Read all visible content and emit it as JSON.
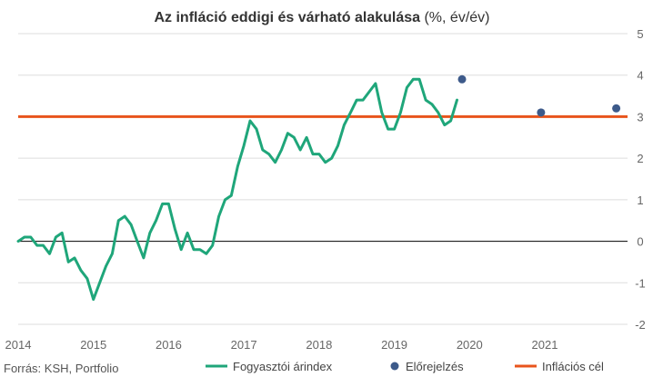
{
  "chart_data": {
    "type": "line",
    "title": "Az infláció eddigi és várható alakulása",
    "title_suffix": " (%, év/év)",
    "source": "Forrás: KSH, Portfolio",
    "x_ticks": [
      "2014",
      "2015",
      "2016",
      "2017",
      "2018",
      "2019",
      "2020",
      "2021"
    ],
    "xlim": [
      2014.0,
      2022.1
    ],
    "y_ticks": [
      "-2",
      "-1",
      "0",
      "1",
      "2",
      "3",
      "4",
      "5"
    ],
    "ylim": [
      -2,
      5
    ],
    "grid": true,
    "zero_line": true,
    "legend_position": "bottom",
    "colors": {
      "cpi": "#1fa67a",
      "forecast": "#3d5a8a",
      "target": "#e8541c",
      "grid": "#dddddd",
      "zero": "#000000"
    },
    "series": [
      {
        "name": "Fogyasztói árindex",
        "style": "line",
        "x": [
          2014.0,
          2014.083,
          2014.167,
          2014.25,
          2014.333,
          2014.417,
          2014.5,
          2014.583,
          2014.667,
          2014.75,
          2014.833,
          2014.917,
          2015.0,
          2015.083,
          2015.167,
          2015.25,
          2015.333,
          2015.417,
          2015.5,
          2015.583,
          2015.667,
          2015.75,
          2015.833,
          2015.917,
          2016.0,
          2016.083,
          2016.167,
          2016.25,
          2016.333,
          2016.417,
          2016.5,
          2016.583,
          2016.667,
          2016.75,
          2016.833,
          2016.917,
          2017.0,
          2017.083,
          2017.167,
          2017.25,
          2017.333,
          2017.417,
          2017.5,
          2017.583,
          2017.667,
          2017.75,
          2017.833,
          2017.917,
          2018.0,
          2018.083,
          2018.167,
          2018.25,
          2018.333,
          2018.417,
          2018.5,
          2018.583,
          2018.667,
          2018.75,
          2018.833,
          2018.917,
          2019.0,
          2019.083,
          2019.167,
          2019.25,
          2019.333,
          2019.417,
          2019.5,
          2019.583,
          2019.667,
          2019.75,
          2019.833
        ],
        "y": [
          0.0,
          0.1,
          0.1,
          -0.1,
          -0.1,
          -0.3,
          0.1,
          0.2,
          -0.5,
          -0.4,
          -0.7,
          -0.9,
          -1.4,
          -1.0,
          -0.6,
          -0.3,
          0.5,
          0.6,
          0.4,
          0.0,
          -0.4,
          0.2,
          0.5,
          0.9,
          0.9,
          0.3,
          -0.2,
          0.2,
          -0.2,
          -0.2,
          -0.3,
          -0.1,
          0.6,
          1.0,
          1.1,
          1.8,
          2.3,
          2.9,
          2.7,
          2.2,
          2.1,
          1.9,
          2.2,
          2.6,
          2.5,
          2.2,
          2.5,
          2.1,
          2.1,
          1.9,
          2.0,
          2.3,
          2.8,
          3.1,
          3.4,
          3.4,
          3.6,
          3.8,
          3.1,
          2.7,
          2.7,
          3.1,
          3.7,
          3.9,
          3.9,
          3.4,
          3.3,
          3.1,
          2.8,
          2.9,
          3.4
        ]
      },
      {
        "name": "Előrejelzés",
        "style": "points",
        "x": [
          2019.9,
          2020.95,
          2021.95
        ],
        "y": [
          3.9,
          3.1,
          3.2
        ]
      },
      {
        "name": "Inflációs cél",
        "style": "line",
        "x": [
          2014.0,
          2022.1
        ],
        "y": [
          3.0,
          3.0
        ]
      }
    ]
  }
}
